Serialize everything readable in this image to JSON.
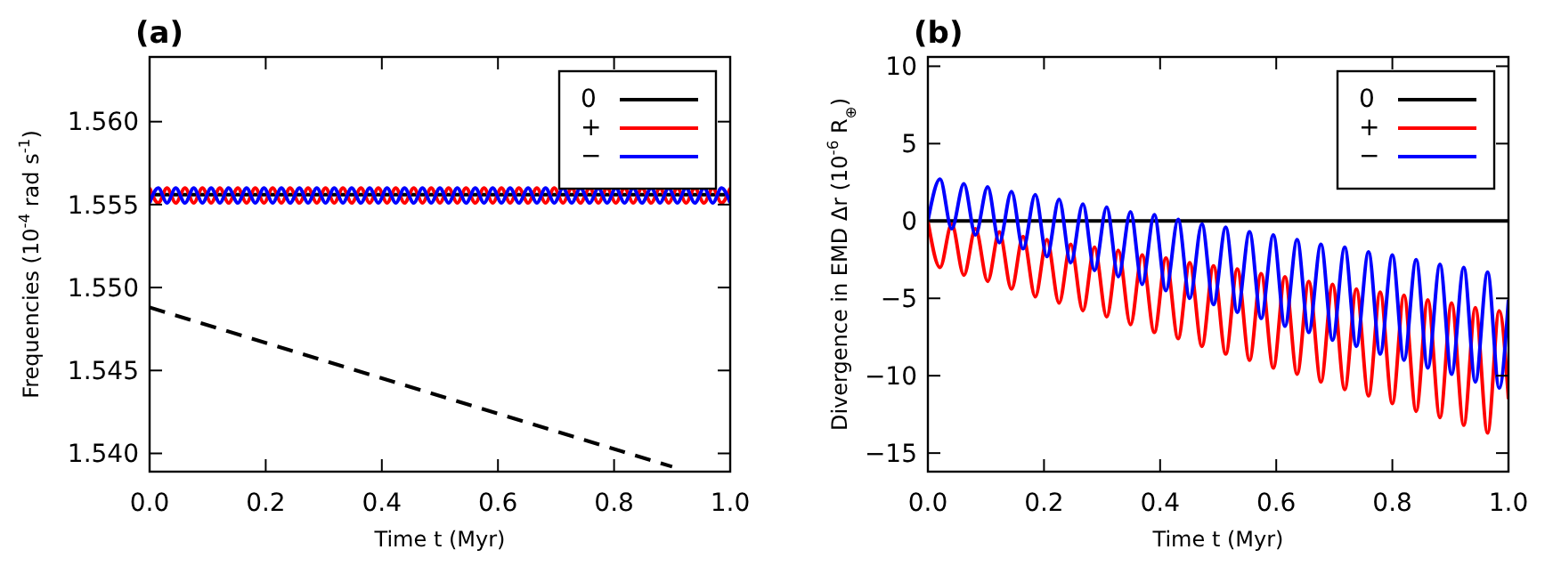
{
  "chart_data": [
    {
      "type": "line",
      "title": "(a)",
      "xlabel": "Time t (Myr)",
      "ylabel": "Frequencies  (10$^{-4}$ rad s$^{-1}$)",
      "xlim": [
        0,
        1
      ],
      "ylim": [
        1.5389,
        1.5639
      ],
      "xticks": [
        {
          "value": 0,
          "label": "0.0"
        },
        {
          "value": 0.2,
          "label": "0.2"
        },
        {
          "value": 0.4,
          "label": "0.4"
        },
        {
          "value": 0.6,
          "label": "0.6"
        },
        {
          "value": 0.8,
          "label": "0.8"
        },
        {
          "value": 1,
          "label": "1.0"
        }
      ],
      "yticks": [
        {
          "value": 1.54,
          "label": "1.540"
        },
        {
          "value": 1.545,
          "label": "1.545"
        },
        {
          "value": 1.55,
          "label": "1.550"
        },
        {
          "value": 1.555,
          "label": "1.555"
        },
        {
          "value": 1.56,
          "label": "1.560"
        }
      ],
      "legend": "top right",
      "grid": false,
      "x": [
        0,
        0.015,
        0.03,
        0.045,
        0.061,
        0.076,
        0.091,
        0.106,
        0.121,
        0.136,
        0.152,
        0.167,
        0.182,
        0.197,
        0.212,
        0.227,
        0.242,
        0.258,
        0.273,
        0.288,
        0.303,
        0.318,
        0.333,
        0.348,
        0.364,
        0.379,
        0.394,
        0.409,
        0.424,
        0.439,
        0.455,
        0.47,
        0.485,
        0.5,
        0.515,
        0.53,
        0.545,
        0.561,
        0.576,
        0.591,
        0.606,
        0.621,
        0.636,
        0.652,
        0.667,
        0.682,
        0.697,
        0.712,
        0.727,
        0.742,
        0.758,
        0.773,
        0.788,
        0.803,
        0.818,
        0.833,
        0.848,
        0.864,
        0.879,
        0.894,
        0.909,
        0.924,
        0.939,
        0.955,
        0.97,
        0.985,
        1.0
      ],
      "series": [
        {
          "name": "0",
          "color": "#000000",
          "line_style": "solid",
          "x": [
            0,
            1
          ],
          "values": [
            1.5556,
            1.5556
          ]
        },
        {
          "name": "+",
          "color": "#ff0000",
          "line_style": "solid",
          "values": [
            1.556,
            1.5551,
            1.556,
            1.5551,
            1.556,
            1.5551,
            1.556,
            1.5551,
            1.556,
            1.5551,
            1.556,
            1.5551,
            1.556,
            1.5551,
            1.556,
            1.5551,
            1.556,
            1.5551,
            1.556,
            1.5551,
            1.556,
            1.5551,
            1.556,
            1.5551,
            1.556,
            1.5551,
            1.556,
            1.5551,
            1.556,
            1.5551,
            1.556,
            1.5551,
            1.556,
            1.5551,
            1.556,
            1.5551,
            1.556,
            1.5551,
            1.556,
            1.5551,
            1.556,
            1.5551,
            1.556,
            1.5551,
            1.556,
            1.5551,
            1.556,
            1.5551,
            1.556,
            1.5551,
            1.556,
            1.5551,
            1.556,
            1.5551,
            1.556,
            1.5551,
            1.556,
            1.5551,
            1.556,
            1.5551,
            1.556,
            1.5551,
            1.556,
            1.5551,
            1.556,
            1.5551,
            1.556
          ]
        },
        {
          "name": "−",
          "color": "#0000ff",
          "line_style": "solid",
          "values": [
            1.5551,
            1.556,
            1.5551,
            1.556,
            1.5551,
            1.556,
            1.5551,
            1.556,
            1.5551,
            1.556,
            1.5551,
            1.556,
            1.5551,
            1.556,
            1.5551,
            1.556,
            1.5551,
            1.556,
            1.5551,
            1.556,
            1.5551,
            1.556,
            1.5551,
            1.556,
            1.5551,
            1.556,
            1.5551,
            1.556,
            1.5551,
            1.556,
            1.5551,
            1.556,
            1.5551,
            1.556,
            1.5551,
            1.556,
            1.5551,
            1.556,
            1.5551,
            1.556,
            1.5551,
            1.556,
            1.5551,
            1.556,
            1.5551,
            1.556,
            1.5551,
            1.556,
            1.5551,
            1.556,
            1.5551,
            1.556,
            1.5551,
            1.556,
            1.5551,
            1.556,
            1.5551,
            1.556,
            1.5551,
            1.556,
            1.5551,
            1.556,
            1.5551,
            1.556,
            1.5551,
            1.556,
            1.5551
          ]
        },
        {
          "color": "#000000",
          "line_style": "dashed",
          "x": [
            0,
            0.9
          ],
          "values": [
            1.5488,
            1.5392
          ]
        }
      ]
    },
    {
      "type": "line",
      "title": "(b)",
      "xlabel": "Time t (Myr)",
      "ylabel": "Divergence in EMD Δr (10$^{-6}$ R$_{⊕}$)",
      "xlim": [
        0,
        1
      ],
      "ylim": [
        -16.2,
        10.6
      ],
      "xticks": [
        {
          "value": 0,
          "label": "0.0"
        },
        {
          "value": 0.2,
          "label": "0.2"
        },
        {
          "value": 0.4,
          "label": "0.4"
        },
        {
          "value": 0.6,
          "label": "0.6"
        },
        {
          "value": 0.8,
          "label": "0.8"
        },
        {
          "value": 1,
          "label": "1.0"
        }
      ],
      "yticks": [
        -15,
        -10,
        -5,
        0,
        5,
        10
      ],
      "legend": "top right",
      "grid": false,
      "x": [
        0,
        0.021,
        0.041,
        0.062,
        0.082,
        0.103,
        0.123,
        0.144,
        0.164,
        0.185,
        0.205,
        0.226,
        0.246,
        0.267,
        0.287,
        0.308,
        0.328,
        0.349,
        0.369,
        0.39,
        0.41,
        0.431,
        0.451,
        0.472,
        0.492,
        0.513,
        0.533,
        0.554,
        0.574,
        0.595,
        0.615,
        0.636,
        0.656,
        0.677,
        0.697,
        0.718,
        0.738,
        0.759,
        0.779,
        0.8,
        0.82,
        0.841,
        0.861,
        0.882,
        0.902,
        0.923,
        0.943,
        0.964,
        0.984,
        1.0
      ],
      "series": [
        {
          "name": "0",
          "color": "#000000",
          "line_style": "solid",
          "x": [
            0,
            1
          ],
          "values": [
            0,
            0
          ]
        },
        {
          "name": "+",
          "color": "#ff0000",
          "line_style": "solid",
          "values": [
            0,
            -3.0,
            -0.2,
            -3.5,
            -0.5,
            -3.9,
            -0.7,
            -4.4,
            -1.0,
            -4.9,
            -1.2,
            -5.3,
            -1.5,
            -5.8,
            -1.7,
            -6.2,
            -1.9,
            -6.7,
            -2.2,
            -7.2,
            -2.4,
            -7.6,
            -2.7,
            -8.1,
            -2.9,
            -8.6,
            -3.1,
            -9.0,
            -3.4,
            -9.5,
            -3.6,
            -9.9,
            -3.9,
            -10.4,
            -4.1,
            -10.9,
            -4.4,
            -11.3,
            -4.6,
            -11.8,
            -4.8,
            -12.3,
            -5.1,
            -12.7,
            -5.3,
            -13.2,
            -5.6,
            -13.7,
            -5.8,
            -11.5
          ]
        },
        {
          "name": "−",
          "color": "#0000ff",
          "line_style": "solid",
          "values": [
            0,
            2.7,
            -0.5,
            2.4,
            -0.9,
            2.2,
            -1.4,
            1.9,
            -1.8,
            1.7,
            -2.3,
            1.4,
            -2.7,
            1.1,
            -3.2,
            0.9,
            -3.6,
            0.6,
            -4.1,
            0.4,
            -4.5,
            0.1,
            -5.0,
            -0.2,
            -5.4,
            -0.4,
            -5.9,
            -0.7,
            -6.3,
            -0.9,
            -6.8,
            -1.2,
            -7.2,
            -1.5,
            -7.7,
            -1.7,
            -8.1,
            -2.0,
            -8.6,
            -2.2,
            -9.0,
            -2.5,
            -9.5,
            -2.8,
            -9.9,
            -3.0,
            -10.4,
            -3.3,
            -10.8,
            -5.1
          ]
        }
      ]
    }
  ]
}
